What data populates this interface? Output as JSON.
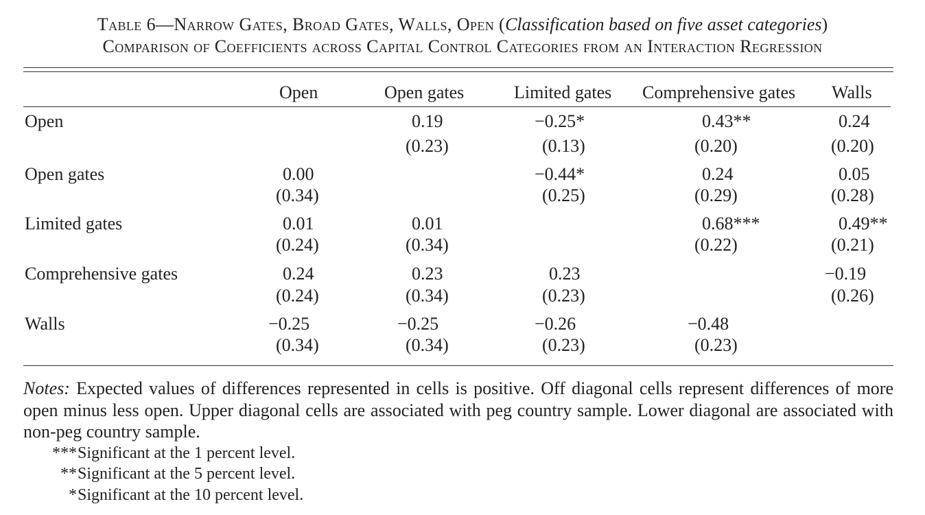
{
  "caption": {
    "line1_prefix": "Table 6—Narrow Gates, Broad Gates, Walls, Open (",
    "line1_italic": "Classification based on five asset categories",
    "line1_suffix": ")",
    "line2": "Comparison of Coefficients across Capital Control Categories from an Interaction Regression"
  },
  "table": {
    "columns": [
      "Open",
      "Open gates",
      "Limited gates",
      "Comprehensive gates",
      "Walls"
    ],
    "rows": [
      {
        "label": "Open",
        "cells": [
          {
            "coef": "",
            "se": ""
          },
          {
            "coef": "0.19",
            "se": "(0.23)"
          },
          {
            "coef": "−0.25*",
            "se": "(0.13)"
          },
          {
            "coef": "0.43**",
            "se": "(0.20)"
          },
          {
            "coef": "0.24",
            "se": "(0.20)"
          }
        ]
      },
      {
        "label": "Open gates",
        "cells": [
          {
            "coef": "0.00",
            "se": "(0.34)"
          },
          {
            "coef": "",
            "se": ""
          },
          {
            "coef": "−0.44*",
            "se": "(0.25)"
          },
          {
            "coef": "0.24",
            "se": "(0.29)"
          },
          {
            "coef": "0.05",
            "se": "(0.28)"
          }
        ]
      },
      {
        "label": "Limited gates",
        "cells": [
          {
            "coef": "0.01",
            "se": "(0.24)"
          },
          {
            "coef": "0.01",
            "se": "(0.34)"
          },
          {
            "coef": "",
            "se": ""
          },
          {
            "coef": "0.68***",
            "se": "(0.22)"
          },
          {
            "coef": "0.49**",
            "se": "(0.21)"
          }
        ]
      },
      {
        "label": "Comprehensive gates",
        "cells": [
          {
            "coef": "0.24",
            "se": "(0.24)"
          },
          {
            "coef": "0.23",
            "se": "(0.34)"
          },
          {
            "coef": "0.23",
            "se": "(0.23)"
          },
          {
            "coef": "",
            "se": ""
          },
          {
            "coef": "−0.19",
            "se": "(0.26)"
          }
        ]
      },
      {
        "label": "Walls",
        "cells": [
          {
            "coef": "−0.25",
            "se": "(0.34)"
          },
          {
            "coef": "−0.25",
            "se": "(0.34)"
          },
          {
            "coef": "−0.26",
            "se": "(0.23)"
          },
          {
            "coef": "−0.48",
            "se": "(0.23)"
          },
          {
            "coef": "",
            "se": ""
          }
        ]
      }
    ]
  },
  "notes": {
    "label": "Notes:",
    "text": "Expected values of differences represented in cells is positive. Off diagonal cells represent differences of more open minus less open. Upper diagonal cells are associated with peg country sample. Lower diagonal are asso­ciated with non-peg country sample.",
    "significance": [
      {
        "stars": "***",
        "text": "Significant at the 1 percent level."
      },
      {
        "stars": "**",
        "text": "Significant at the 5 percent level."
      },
      {
        "stars": "*",
        "text": "Significant at the 10 percent level."
      }
    ]
  }
}
